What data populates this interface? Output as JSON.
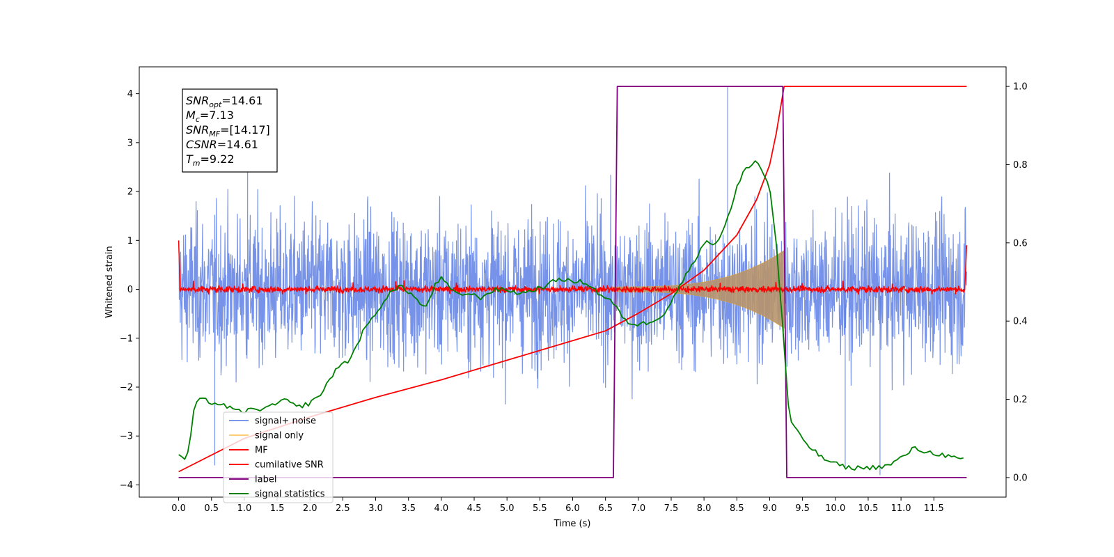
{
  "chart_data": {
    "type": "line",
    "xlabel": "Time (s)",
    "ylabel": "Whitened strain",
    "xlim": [
      -0.6,
      12.6
    ],
    "ylim": [
      -4.25,
      4.55
    ],
    "y2lim": [
      -0.05,
      1.05
    ],
    "x_ticks": [
      "0.0",
      "0.5",
      "1.0",
      "1.5",
      "2.0",
      "2.5",
      "3.0",
      "3.5",
      "4.0",
      "4.5",
      "5.0",
      "5.5",
      "6.0",
      "6.5",
      "7.0",
      "7.5",
      "8.0",
      "8.5",
      "9.0",
      "9.5",
      "10.0",
      "10.5",
      "11.0",
      "11.5"
    ],
    "y_ticks": [
      "4",
      "3",
      "2",
      "1",
      "0",
      "−1",
      "−2",
      "−3",
      "−4"
    ],
    "y2_ticks": [
      "1.0",
      "0.8",
      "0.6",
      "0.4",
      "0.2",
      "0.0"
    ],
    "legend_position": "lower-left",
    "legend": [
      {
        "label": "signal+ noise",
        "color": "#4169e1"
      },
      {
        "label": "signal only",
        "color": "#ffa500"
      },
      {
        "label": "MF",
        "color": "#ff0000"
      },
      {
        "label": "cumilative SNR",
        "color": "#ff0000"
      },
      {
        "label": "label",
        "color": "#800080"
      },
      {
        "label": "signal statistics",
        "color": "#008000"
      }
    ],
    "annotation": {
      "lines": [
        {
          "base": "SNR",
          "sub": "opt",
          "value": "=14.61"
        },
        {
          "base": "M",
          "sub": "c",
          "value": "=7.13"
        },
        {
          "base": "SNR",
          "sub": "MF",
          "value": "=[14.17]"
        },
        {
          "base": "CSNR",
          "sub": "",
          "value": "=14.61"
        },
        {
          "base": "T",
          "sub": "m",
          "value": "=9.22"
        }
      ]
    },
    "series": [
      {
        "name": "signal+ noise",
        "color": "#4169e1",
        "axis": "left",
        "x_range": [
          0.0,
          12.0
        ],
        "noise_envelope": [
          -2.5,
          2.5
        ],
        "peak_max": 4.15,
        "peak_min": -3.8
      },
      {
        "name": "signal only",
        "color": "#ffa500",
        "axis": "left",
        "x_range": [
          6.6,
          9.22
        ],
        "amplitude_start": 0.05,
        "amplitude_end": 0.8
      },
      {
        "name": "MF",
        "color": "#ff0000",
        "axis": "left",
        "x_range": [
          0.0,
          12.0
        ],
        "baseline": 0.0,
        "edge_values": [
          1.0,
          0.9
        ]
      },
      {
        "name": "cumilative SNR",
        "color": "#ff0000",
        "axis": "right",
        "x": [
          0.0,
          1.0,
          2.0,
          3.0,
          4.0,
          5.0,
          6.0,
          6.5,
          7.0,
          7.5,
          8.0,
          8.5,
          8.8,
          9.0,
          9.1,
          9.22,
          12.0
        ],
        "y": [
          0.015,
          0.1,
          0.155,
          0.205,
          0.25,
          0.3,
          0.35,
          0.375,
          0.42,
          0.47,
          0.53,
          0.62,
          0.71,
          0.8,
          0.88,
          1.0,
          1.0
        ]
      },
      {
        "name": "label",
        "color": "#800080",
        "axis": "right",
        "x": [
          0.0,
          6.62,
          6.68,
          9.2,
          9.26,
          12.0
        ],
        "y": [
          0.0,
          0.0,
          1.0,
          1.0,
          0.0,
          0.0
        ]
      },
      {
        "name": "signal statistics",
        "color": "#008000",
        "axis": "right",
        "x": [
          0.0,
          0.08,
          0.15,
          0.25,
          0.35,
          0.45,
          0.55,
          0.7,
          0.85,
          1.0,
          1.2,
          1.4,
          1.6,
          1.8,
          2.0,
          2.2,
          2.4,
          2.6,
          2.8,
          3.0,
          3.2,
          3.4,
          3.6,
          3.75,
          3.9,
          4.0,
          4.2,
          4.4,
          4.6,
          4.8,
          5.0,
          5.2,
          5.4,
          5.6,
          5.8,
          6.0,
          6.2,
          6.4,
          6.6,
          6.8,
          7.0,
          7.2,
          7.4,
          7.6,
          7.8,
          8.0,
          8.2,
          8.4,
          8.5,
          8.6,
          8.7,
          8.8,
          8.9,
          9.0,
          9.1,
          9.2,
          9.3,
          9.4,
          9.6,
          9.8,
          10.0,
          10.2,
          10.5,
          10.8,
          11.0,
          11.2,
          11.4,
          11.6,
          11.8,
          11.95
        ],
        "y": [
          0.06,
          0.04,
          0.07,
          0.19,
          0.2,
          0.195,
          0.19,
          0.185,
          0.17,
          0.17,
          0.175,
          0.18,
          0.2,
          0.18,
          0.19,
          0.22,
          0.28,
          0.3,
          0.37,
          0.42,
          0.47,
          0.49,
          0.46,
          0.43,
          0.49,
          0.51,
          0.47,
          0.47,
          0.46,
          0.48,
          0.48,
          0.47,
          0.48,
          0.49,
          0.51,
          0.5,
          0.5,
          0.47,
          0.45,
          0.4,
          0.39,
          0.4,
          0.42,
          0.48,
          0.54,
          0.6,
          0.6,
          0.68,
          0.74,
          0.78,
          0.8,
          0.81,
          0.78,
          0.74,
          0.6,
          0.38,
          0.15,
          0.12,
          0.08,
          0.05,
          0.035,
          0.025,
          0.025,
          0.03,
          0.05,
          0.075,
          0.065,
          0.06,
          0.05,
          0.045
        ]
      }
    ]
  }
}
